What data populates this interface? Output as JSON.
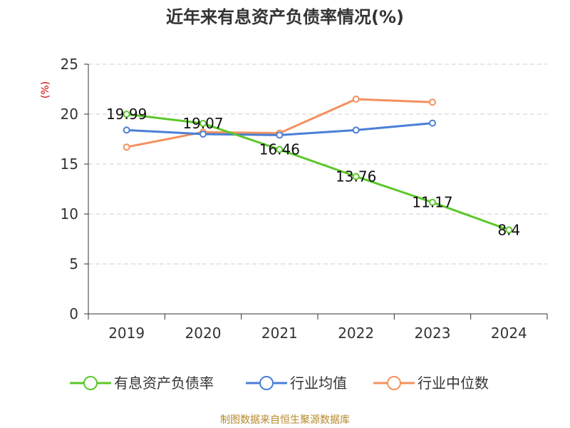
{
  "chart_data": {
    "type": "line",
    "title": "近年来有息资产负债率情况(%)",
    "ylabel": "(%)",
    "xlabel": "",
    "categories": [
      "2019",
      "2020",
      "2021",
      "2022",
      "2023",
      "2024"
    ],
    "ylim": [
      0,
      25
    ],
    "yticks": [
      0,
      5,
      10,
      15,
      20,
      25
    ],
    "grid": true,
    "legend_position": "bottom",
    "series": [
      {
        "name": "有息资产负债率",
        "color": "#5cc72a",
        "values": [
          19.99,
          19.07,
          16.46,
          13.76,
          11.17,
          8.4
        ],
        "labels": [
          "19.99",
          "19.07",
          "16.46",
          "13.76",
          "11.17",
          "8.4"
        ]
      },
      {
        "name": "行业均值",
        "color": "#4a7fd6",
        "values": [
          18.4,
          18.0,
          17.9,
          18.4,
          19.1,
          null
        ]
      },
      {
        "name": "行业中位数",
        "color": "#f4915e",
        "values": [
          16.7,
          18.2,
          18.1,
          21.5,
          21.2,
          null
        ]
      }
    ]
  },
  "source_note": "制图数据来自恒生聚源数据库"
}
